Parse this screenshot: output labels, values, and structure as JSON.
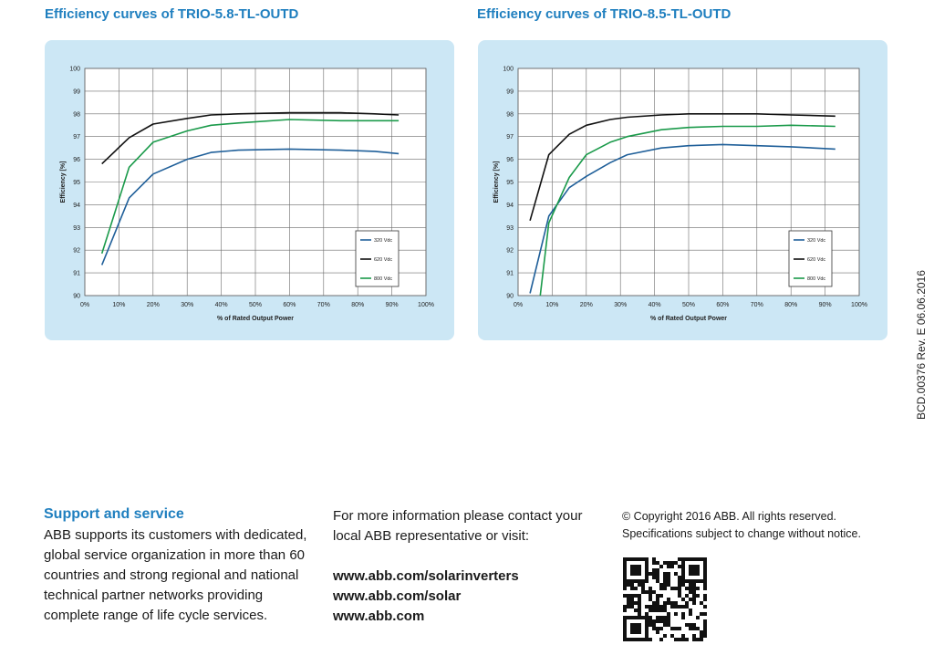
{
  "charts": [
    {
      "title": "Efficiency curves of TRIO-5.8-TL-OUTD",
      "ylabel": "Efficiency [%]",
      "xlabel": "% of Rated Output Power",
      "x_ticks": [
        "0%",
        "10%",
        "20%",
        "30%",
        "40%",
        "50%",
        "60%",
        "70%",
        "80%",
        "90%",
        "100%"
      ],
      "y_ticks": [
        "90",
        "91",
        "92",
        "93",
        "94",
        "95",
        "96",
        "97",
        "98",
        "99",
        "100"
      ]
    },
    {
      "title": "Efficiency curves of TRIO-8.5-TL-OUTD",
      "ylabel": "Efficiency [%]",
      "xlabel": "% of Rated Output Power",
      "x_ticks": [
        "0%",
        "10%",
        "20%",
        "30%",
        "40%",
        "50%",
        "60%",
        "70%",
        "80%",
        "90%",
        "100%"
      ],
      "y_ticks": [
        "90",
        "91",
        "92",
        "93",
        "94",
        "95",
        "96",
        "97",
        "98",
        "99",
        "100"
      ]
    }
  ],
  "chart_data": [
    {
      "type": "line",
      "title": "Efficiency curves of TRIO-5.8-TL-OUTD",
      "xlabel": "% of Rated Output Power",
      "ylabel": "Efficiency [%]",
      "xlim": [
        0,
        100
      ],
      "ylim": [
        90,
        100
      ],
      "grid": true,
      "legend_position": "bottom-right",
      "series": [
        {
          "name": "320 Vdc",
          "color": "#1f5f99",
          "x": [
            5,
            13,
            20,
            30,
            37,
            45,
            60,
            75,
            85,
            92
          ],
          "y": [
            91.35,
            94.3,
            95.35,
            96.0,
            96.3,
            96.4,
            96.45,
            96.4,
            96.35,
            96.25
          ]
        },
        {
          "name": "620 Vdc",
          "color": "#111111",
          "x": [
            5,
            13,
            20,
            30,
            37,
            45,
            60,
            75,
            85,
            92
          ],
          "y": [
            95.8,
            96.95,
            97.55,
            97.8,
            97.95,
            98.0,
            98.05,
            98.05,
            98.0,
            97.95
          ]
        },
        {
          "name": "800 Vdc",
          "color": "#1a9a4a",
          "x": [
            5,
            13,
            20,
            30,
            37,
            45,
            60,
            75,
            85,
            92
          ],
          "y": [
            91.85,
            95.65,
            96.75,
            97.25,
            97.5,
            97.6,
            97.75,
            97.7,
            97.7,
            97.7
          ]
        }
      ]
    },
    {
      "type": "line",
      "title": "Efficiency curves of TRIO-8.5-TL-OUTD",
      "xlabel": "% of Rated Output Power",
      "ylabel": "Efficiency [%]",
      "xlim": [
        0,
        100
      ],
      "ylim": [
        90,
        100
      ],
      "grid": true,
      "legend_position": "bottom-right",
      "series": [
        {
          "name": "320 Vdc",
          "color": "#1f5f99",
          "x": [
            3.5,
            9,
            15,
            20,
            27,
            32,
            42,
            50,
            60,
            70,
            80,
            93
          ],
          "y": [
            90.1,
            93.5,
            94.75,
            95.25,
            95.85,
            96.2,
            96.5,
            96.6,
            96.65,
            96.6,
            96.55,
            96.45
          ]
        },
        {
          "name": "620 Vdc",
          "color": "#111111",
          "x": [
            3.5,
            9,
            15,
            20,
            27,
            32,
            42,
            50,
            60,
            70,
            80,
            93
          ],
          "y": [
            93.3,
            96.2,
            97.1,
            97.5,
            97.75,
            97.85,
            97.95,
            98.0,
            98.0,
            98.0,
            97.95,
            97.9
          ]
        },
        {
          "name": "800 Vdc",
          "color": "#1a9a4a",
          "x": [
            6.5,
            9,
            15,
            20,
            27,
            32,
            42,
            50,
            60,
            70,
            80,
            93
          ],
          "y": [
            90.0,
            93.2,
            95.2,
            96.2,
            96.75,
            97.0,
            97.3,
            97.4,
            97.45,
            97.45,
            97.5,
            97.45
          ]
        }
      ]
    }
  ],
  "side_code": "BCD.00376 Rev. E 06.06.2016",
  "support": {
    "title": "Support and service",
    "text": "ABB supports its customers with dedicated, global service organization in more than 60 countries and strong regional and national technical partner networks providing complete range of life cycle services."
  },
  "contact": {
    "text": "For more information please contact your local ABB representative or visit:",
    "links": [
      "www.abb.com/solarinverters",
      "www.abb.com/solar",
      "www.abb.com"
    ]
  },
  "copyright": {
    "line1": "© Copyright 2016 ABB. All rights reserved.",
    "line2": "Specifications subject to change without notice."
  },
  "qr_icon": "qr-code-icon"
}
